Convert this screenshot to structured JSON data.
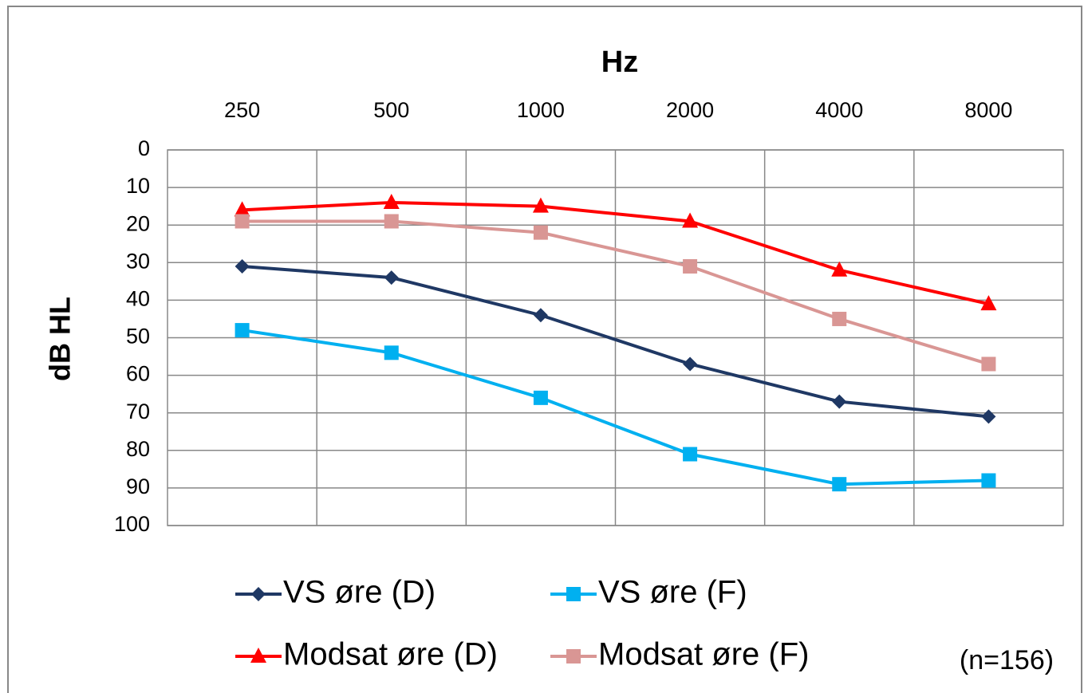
{
  "chart_data": {
    "type": "line",
    "x_title": "Hz",
    "y_title": "dB HL",
    "annotation": "(n=156)",
    "categories": [
      "250",
      "500",
      "1000",
      "2000",
      "4000",
      "8000"
    ],
    "ylim": [
      0,
      100
    ],
    "yticks": [
      0,
      10,
      20,
      30,
      40,
      50,
      60,
      70,
      80,
      90,
      100
    ],
    "y_inverted": true,
    "x_axis_position": "top",
    "grid": true,
    "series": [
      {
        "name": "VS øre (D)",
        "color": "#1f3864",
        "marker": "diamond",
        "values": [
          31,
          34,
          44,
          57,
          67,
          71
        ]
      },
      {
        "name": "VS øre (F)",
        "color": "#00b0f0",
        "marker": "square",
        "values": [
          48,
          54,
          66,
          81,
          89,
          88
        ]
      },
      {
        "name": "Modsat øre (D)",
        "color": "#ff0000",
        "marker": "triangle",
        "values": [
          16,
          14,
          15,
          19,
          32,
          41
        ]
      },
      {
        "name": "Modsat øre (F)",
        "color": "#d99694",
        "marker": "square",
        "values": [
          19,
          19,
          22,
          31,
          45,
          57
        ]
      }
    ]
  }
}
